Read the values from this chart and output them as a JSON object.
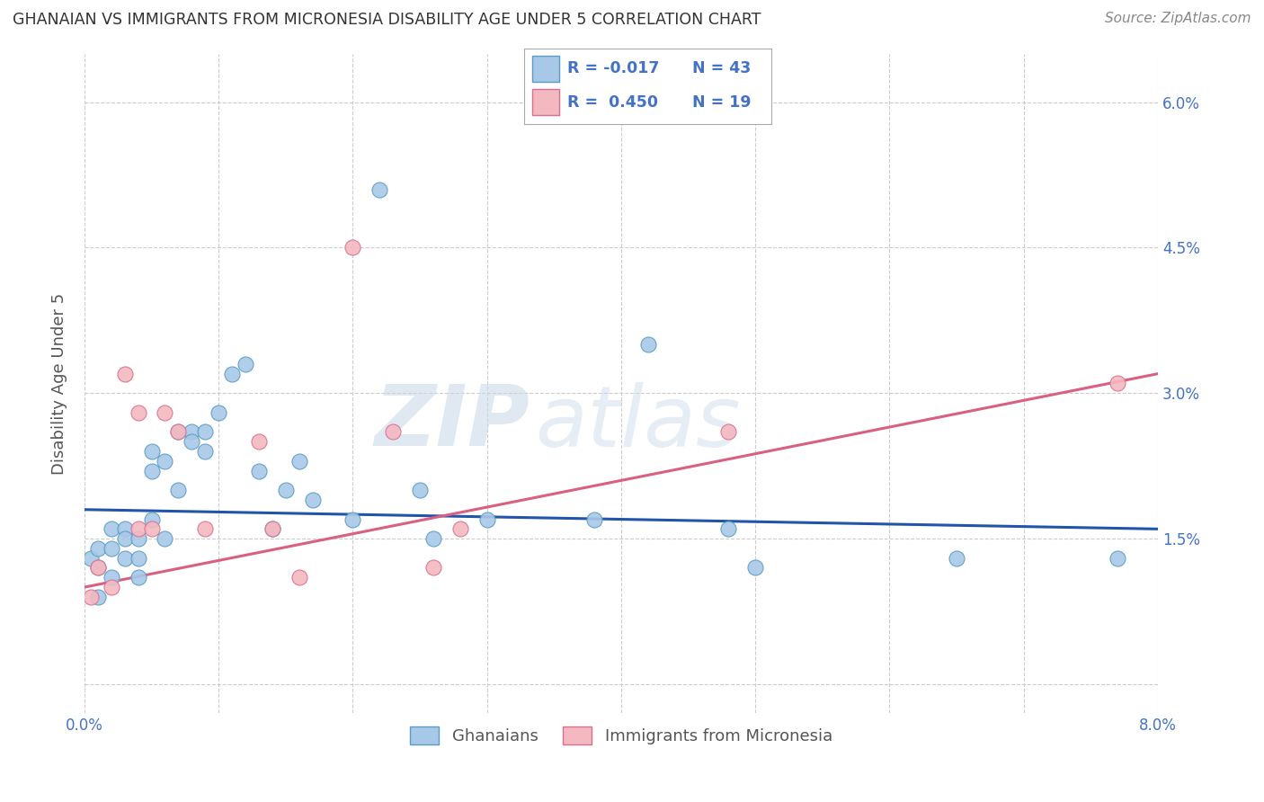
{
  "title": "GHANAIAN VS IMMIGRANTS FROM MICRONESIA DISABILITY AGE UNDER 5 CORRELATION CHART",
  "source": "Source: ZipAtlas.com",
  "ylabel": "Disability Age Under 5",
  "xmin": 0.0,
  "xmax": 0.08,
  "ymin": -0.003,
  "ymax": 0.065,
  "yticks": [
    0.0,
    0.015,
    0.03,
    0.045,
    0.06
  ],
  "ytick_labels": [
    "",
    "1.5%",
    "3.0%",
    "4.5%",
    "6.0%"
  ],
  "xticks": [
    0.0,
    0.01,
    0.02,
    0.03,
    0.04,
    0.05,
    0.06,
    0.07,
    0.08
  ],
  "xtick_labels": [
    "0.0%",
    "",
    "",
    "",
    "",
    "",
    "",
    "",
    "8.0%"
  ],
  "ghanaians_x": [
    0.0005,
    0.001,
    0.001,
    0.001,
    0.002,
    0.002,
    0.002,
    0.003,
    0.003,
    0.003,
    0.004,
    0.004,
    0.004,
    0.005,
    0.005,
    0.005,
    0.006,
    0.006,
    0.007,
    0.007,
    0.008,
    0.008,
    0.009,
    0.009,
    0.01,
    0.011,
    0.012,
    0.013,
    0.014,
    0.015,
    0.016,
    0.017,
    0.02,
    0.022,
    0.025,
    0.026,
    0.03,
    0.038,
    0.042,
    0.048,
    0.05,
    0.065,
    0.077
  ],
  "ghanaians_y": [
    0.013,
    0.014,
    0.012,
    0.009,
    0.016,
    0.014,
    0.011,
    0.016,
    0.015,
    0.013,
    0.015,
    0.013,
    0.011,
    0.017,
    0.022,
    0.024,
    0.015,
    0.023,
    0.02,
    0.026,
    0.026,
    0.025,
    0.024,
    0.026,
    0.028,
    0.032,
    0.033,
    0.022,
    0.016,
    0.02,
    0.023,
    0.019,
    0.017,
    0.051,
    0.02,
    0.015,
    0.017,
    0.017,
    0.035,
    0.016,
    0.012,
    0.013,
    0.013
  ],
  "micronesia_x": [
    0.0005,
    0.001,
    0.002,
    0.003,
    0.004,
    0.004,
    0.005,
    0.006,
    0.007,
    0.009,
    0.013,
    0.014,
    0.016,
    0.02,
    0.023,
    0.026,
    0.028,
    0.048,
    0.077
  ],
  "micronesia_y": [
    0.009,
    0.012,
    0.01,
    0.032,
    0.016,
    0.028,
    0.016,
    0.028,
    0.026,
    0.016,
    0.025,
    0.016,
    0.011,
    0.045,
    0.026,
    0.012,
    0.016,
    0.026,
    0.031
  ],
  "blue_line_x": [
    0.0,
    0.08
  ],
  "blue_line_y": [
    0.018,
    0.016
  ],
  "pink_line_x": [
    0.0,
    0.08
  ],
  "pink_line_y": [
    0.01,
    0.032
  ],
  "blue_color": "#a8c8e8",
  "blue_edge_color": "#5a9cc5",
  "pink_color": "#f4b8c0",
  "pink_edge_color": "#d97090",
  "blue_line_color": "#2255aa",
  "pink_line_color": "#d96080",
  "watermark_zip": "ZIP",
  "watermark_atlas": "atlas",
  "background_color": "#ffffff",
  "grid_color": "#cccccc",
  "title_color": "#333333",
  "axis_color": "#4472c4",
  "legend_blue_r": "R = -0.017",
  "legend_blue_n": "N = 43",
  "legend_pink_r": "R =  0.450",
  "legend_pink_n": "N = 19"
}
